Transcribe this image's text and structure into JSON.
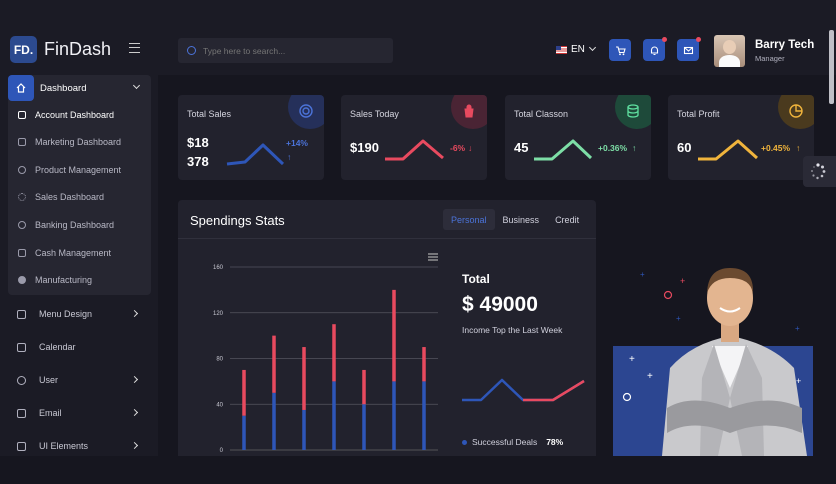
{
  "brand": {
    "logo": "FD.",
    "name": "FinDash"
  },
  "sidebar": {
    "group_label": "Dashboard",
    "sub_items": [
      {
        "label": "Account Dashboard",
        "icon": "list-icon"
      },
      {
        "label": "Marketing Dashboard",
        "icon": "card-icon"
      },
      {
        "label": "Product Management",
        "icon": "circle-check-icon"
      },
      {
        "label": "Sales Dashboard",
        "icon": "gear-icon"
      },
      {
        "label": "Banking Dashboard",
        "icon": "target-icon"
      },
      {
        "label": "Cash Management",
        "icon": "chart-icon"
      },
      {
        "label": "Manufacturing",
        "icon": "dot-icon"
      }
    ],
    "nav_items": [
      {
        "label": "Menu Design",
        "icon": "menu-icon",
        "has_children": true
      },
      {
        "label": "Calendar",
        "icon": "calendar-icon",
        "has_children": false
      },
      {
        "label": "User",
        "icon": "user-icon",
        "has_children": true
      },
      {
        "label": "Email",
        "icon": "email-icon",
        "has_children": true
      },
      {
        "label": "UI Elements",
        "icon": "grid-icon",
        "has_children": true
      }
    ]
  },
  "topbar": {
    "search_placeholder": "Type here to search...",
    "language": "EN",
    "user_name": "Barry Tech",
    "user_role": "Manager"
  },
  "cards": [
    {
      "title": "Total Sales",
      "value_line1": "$18",
      "value_line2": "378",
      "change": "+14%",
      "trend": "up",
      "color": "#2e56b8",
      "icon": "target-icon",
      "icon_bg": "#25305a",
      "icon_color": "#4b73d9"
    },
    {
      "title": "Sales Today",
      "value_line1": "$190",
      "value_line2": "",
      "change": "-6%",
      "trend": "down",
      "color": "#e84a5f",
      "icon": "bag-icon",
      "icon_bg": "#4a2434",
      "icon_color": "#e84a5f"
    },
    {
      "title": "Total Classon",
      "value_line1": "45",
      "value_line2": "",
      "change": "+0.36%",
      "trend": "up",
      "color": "#7ddea6",
      "icon": "database-icon",
      "icon_bg": "#1e4a3a",
      "icon_color": "#5fe0a0"
    },
    {
      "title": "Total Profit",
      "value_line1": "60",
      "value_line2": "",
      "change": "+0.45%",
      "trend": "up",
      "color": "#f0b43c",
      "icon": "pie-icon",
      "icon_bg": "#4a3a1e",
      "icon_color": "#f0b43c"
    }
  ],
  "spendings": {
    "title": "Spendings Stats",
    "tabs": [
      "Personal",
      "Business",
      "Credit"
    ],
    "active_tab": "Personal",
    "total_label": "Total",
    "total_value": "$ 49000",
    "total_sub": "Income Top the Last Week",
    "legend_label": "Successful Deals",
    "legend_value": "78%"
  },
  "chart_data": {
    "type": "bar",
    "stacked": true,
    "y_ticks": [
      "0",
      "40",
      "80",
      "120",
      "160"
    ],
    "ylim": [
      0,
      160
    ],
    "grid": true,
    "series": [
      {
        "values": [
          30,
          50,
          35,
          60,
          40,
          60,
          60
        ],
        "color": "#2e56b8"
      },
      {
        "values": [
          40,
          50,
          55,
          50,
          30,
          80,
          30
        ],
        "color": "#e84a5f"
      }
    ]
  }
}
